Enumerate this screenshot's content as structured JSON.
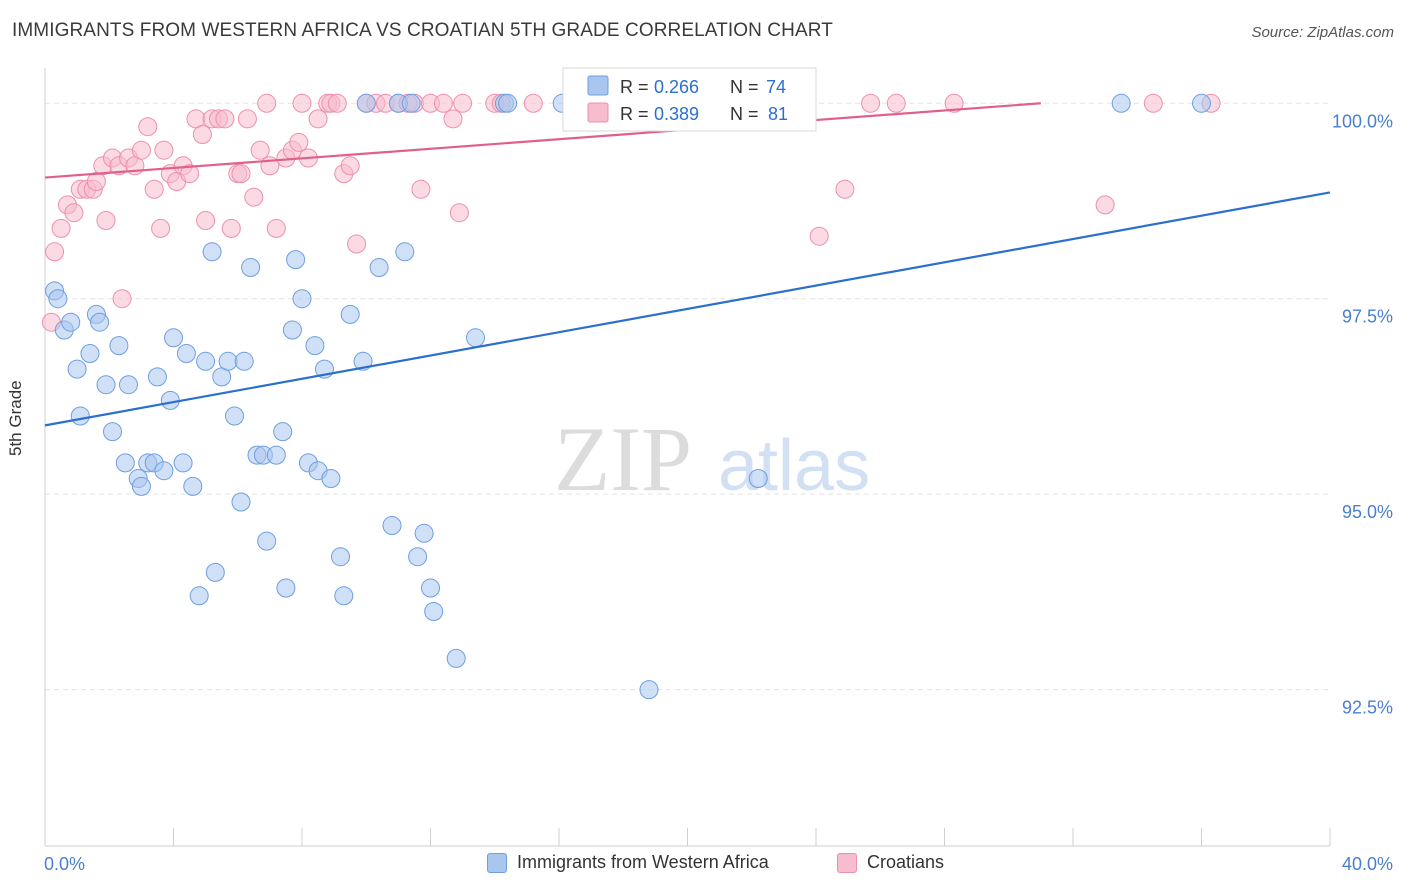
{
  "title": "IMMIGRANTS FROM WESTERN AFRICA VS CROATIAN 5TH GRADE CORRELATION CHART",
  "source": "Source: ZipAtlas.com",
  "watermark": {
    "zip": "ZIP",
    "atlas": "atlas"
  },
  "colors": {
    "blue_fill": "#a9c6ee",
    "blue_stroke": "#6f9fe0",
    "blue_line": "#2b6fcf",
    "pink_fill": "#f7bccd",
    "pink_stroke": "#ee8fab",
    "pink_line": "#e0608a",
    "tick_text": "#4a7fd0",
    "grid": "#e4e4e4"
  },
  "legend": {
    "rows": [
      {
        "r_label": "R =",
        "r_value": "0.266",
        "n_label": "N =",
        "n_value": "74"
      },
      {
        "r_label": "R =",
        "r_value": "0.389",
        "n_label": "N =",
        "n_value": "81"
      }
    ]
  },
  "chart_data": {
    "type": "scatter",
    "ylabel": "5th Grade",
    "x_tick_labels": [
      "0.0%",
      "40.0%"
    ],
    "y_tick_labels": [
      "100.0%",
      "97.5%",
      "95.0%",
      "92.5%"
    ],
    "xlim": [
      0,
      40
    ],
    "ylim": [
      90.5,
      100.4
    ],
    "y_ticks": [
      100,
      97.5,
      95,
      92.5
    ],
    "series": [
      {
        "name": "Immigrants from Western Africa",
        "color": "#6f9fe0",
        "trendline": {
          "x": [
            0,
            40
          ],
          "y": [
            95.88,
            98.86
          ]
        },
        "points": [
          [
            0.3,
            97.6
          ],
          [
            0.6,
            97.1
          ],
          [
            0.8,
            97.2
          ],
          [
            1.0,
            96.6
          ],
          [
            1.1,
            96.0
          ],
          [
            1.4,
            96.8
          ],
          [
            1.6,
            97.3
          ],
          [
            1.7,
            97.2
          ],
          [
            1.9,
            96.4
          ],
          [
            2.1,
            95.8
          ],
          [
            2.3,
            96.9
          ],
          [
            2.5,
            95.4
          ],
          [
            2.6,
            96.4
          ],
          [
            2.9,
            95.2
          ],
          [
            3.0,
            95.1
          ],
          [
            3.2,
            95.4
          ],
          [
            3.4,
            95.4
          ],
          [
            3.5,
            96.5
          ],
          [
            3.7,
            95.3
          ],
          [
            3.9,
            96.2
          ],
          [
            4.0,
            97.0
          ],
          [
            4.3,
            95.4
          ],
          [
            4.4,
            96.8
          ],
          [
            4.6,
            95.1
          ],
          [
            4.8,
            93.7
          ],
          [
            5.0,
            96.7
          ],
          [
            5.2,
            98.1
          ],
          [
            5.3,
            94.0
          ],
          [
            5.5,
            96.5
          ],
          [
            5.7,
            96.7
          ],
          [
            5.9,
            96.0
          ],
          [
            6.1,
            94.9
          ],
          [
            6.2,
            96.7
          ],
          [
            6.4,
            97.9
          ],
          [
            6.6,
            95.5
          ],
          [
            6.8,
            95.5
          ],
          [
            6.9,
            94.4
          ],
          [
            7.2,
            95.5
          ],
          [
            7.4,
            95.8
          ],
          [
            7.5,
            93.8
          ],
          [
            7.7,
            97.1
          ],
          [
            7.8,
            98.0
          ],
          [
            8.0,
            97.5
          ],
          [
            8.2,
            95.4
          ],
          [
            8.4,
            96.9
          ],
          [
            8.5,
            95.3
          ],
          [
            8.7,
            96.6
          ],
          [
            8.9,
            95.2
          ],
          [
            9.2,
            94.2
          ],
          [
            9.3,
            93.7
          ],
          [
            9.5,
            97.3
          ],
          [
            9.9,
            96.7
          ],
          [
            10.0,
            100.0
          ],
          [
            10.4,
            97.9
          ],
          [
            10.8,
            94.6
          ],
          [
            11.0,
            100.0
          ],
          [
            11.2,
            98.1
          ],
          [
            11.4,
            100.0
          ],
          [
            11.6,
            94.2
          ],
          [
            11.8,
            94.5
          ],
          [
            12.0,
            93.8
          ],
          [
            12.1,
            93.5
          ],
          [
            12.8,
            92.9
          ],
          [
            13.4,
            97.0
          ],
          [
            14.3,
            100.0
          ],
          [
            14.4,
            100.0
          ],
          [
            16.1,
            100.0
          ],
          [
            17.9,
            100.0
          ],
          [
            18.8,
            92.5
          ],
          [
            22.2,
            95.2
          ],
          [
            23.1,
            100.0
          ],
          [
            33.5,
            100.0
          ],
          [
            36.0,
            100.0
          ],
          [
            0.4,
            97.5
          ]
        ]
      },
      {
        "name": "Croatians",
        "color": "#ee8fab",
        "trendline": {
          "x": [
            0,
            31
          ],
          "y": [
            99.05,
            100.0
          ]
        },
        "points": [
          [
            0.2,
            97.2
          ],
          [
            0.3,
            98.1
          ],
          [
            0.5,
            98.4
          ],
          [
            0.7,
            98.7
          ],
          [
            0.9,
            98.6
          ],
          [
            1.1,
            98.9
          ],
          [
            1.3,
            98.9
          ],
          [
            1.5,
            98.9
          ],
          [
            1.6,
            99.0
          ],
          [
            1.8,
            99.2
          ],
          [
            1.9,
            98.5
          ],
          [
            2.1,
            99.3
          ],
          [
            2.3,
            99.2
          ],
          [
            2.4,
            97.5
          ],
          [
            2.6,
            99.3
          ],
          [
            2.8,
            99.2
          ],
          [
            3.0,
            99.4
          ],
          [
            3.2,
            99.7
          ],
          [
            3.4,
            98.9
          ],
          [
            3.6,
            98.4
          ],
          [
            3.7,
            99.4
          ],
          [
            3.9,
            99.1
          ],
          [
            4.1,
            99.0
          ],
          [
            4.3,
            99.2
          ],
          [
            4.5,
            99.1
          ],
          [
            4.7,
            99.8
          ],
          [
            4.9,
            99.6
          ],
          [
            5.0,
            98.5
          ],
          [
            5.2,
            99.8
          ],
          [
            5.4,
            99.8
          ],
          [
            5.6,
            99.8
          ],
          [
            5.8,
            98.4
          ],
          [
            6.0,
            99.1
          ],
          [
            6.1,
            99.1
          ],
          [
            6.3,
            99.8
          ],
          [
            6.5,
            98.8
          ],
          [
            6.7,
            99.4
          ],
          [
            6.9,
            100.0
          ],
          [
            7.0,
            99.2
          ],
          [
            7.2,
            98.4
          ],
          [
            7.5,
            99.3
          ],
          [
            7.7,
            99.4
          ],
          [
            7.9,
            99.5
          ],
          [
            8.0,
            100.0
          ],
          [
            8.2,
            99.3
          ],
          [
            8.5,
            99.8
          ],
          [
            8.8,
            100.0
          ],
          [
            8.9,
            100.0
          ],
          [
            9.1,
            100.0
          ],
          [
            9.3,
            99.1
          ],
          [
            9.5,
            99.2
          ],
          [
            9.7,
            98.2
          ],
          [
            10.0,
            100.0
          ],
          [
            10.3,
            100.0
          ],
          [
            10.6,
            100.0
          ],
          [
            11.0,
            100.0
          ],
          [
            11.3,
            100.0
          ],
          [
            11.5,
            100.0
          ],
          [
            11.7,
            98.9
          ],
          [
            12.0,
            100.0
          ],
          [
            12.4,
            100.0
          ],
          [
            12.7,
            99.8
          ],
          [
            12.9,
            98.6
          ],
          [
            13.0,
            100.0
          ],
          [
            14.0,
            100.0
          ],
          [
            14.2,
            100.0
          ],
          [
            15.2,
            100.0
          ],
          [
            16.6,
            100.0
          ],
          [
            17.4,
            100.0
          ],
          [
            22.1,
            100.0
          ],
          [
            22.8,
            100.0
          ],
          [
            23.0,
            100.0
          ],
          [
            23.4,
            100.0
          ],
          [
            24.1,
            98.3
          ],
          [
            24.9,
            98.9
          ],
          [
            25.7,
            100.0
          ],
          [
            26.5,
            100.0
          ],
          [
            28.3,
            100.0
          ],
          [
            33.0,
            98.7
          ],
          [
            34.5,
            100.0
          ],
          [
            36.3,
            100.0
          ]
        ]
      }
    ]
  }
}
